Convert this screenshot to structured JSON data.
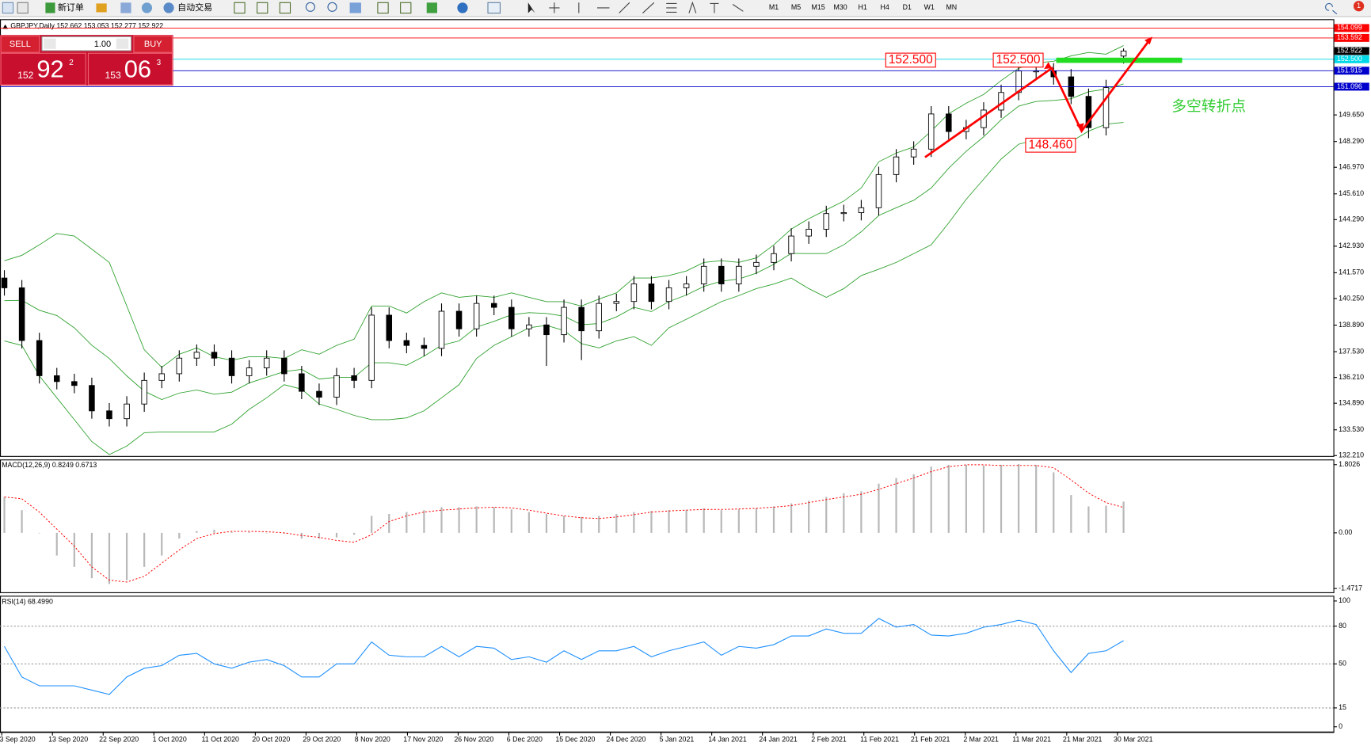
{
  "toolbar": {
    "buttons": [
      "新订单",
      "自动交易"
    ],
    "timeframes": [
      "M1",
      "M5",
      "M15",
      "M30",
      "H1",
      "H4",
      "D1",
      "W1",
      "MN"
    ],
    "alerts": "1"
  },
  "one_click": {
    "sell": "SELL",
    "buy": "BUY",
    "lot": "1.00",
    "bid_big": "152",
    "bid_main": "92",
    "bid_pip": "2",
    "ask_big": "153",
    "ask_main": "06",
    "ask_pip": "3"
  },
  "x_axis": {
    "labels": [
      "3 Sep 2020",
      "13 Sep 2020",
      "22 Sep 2020",
      "1 Oct 2020",
      "11 Oct 2020",
      "20 Oct 2020",
      "29 Oct 2020",
      "8 Nov 2020",
      "17 Nov 2020",
      "26 Nov 2020",
      "6 Dec 2020",
      "15 Dec 2020",
      "24 Dec 2020",
      "5 Jan 2021",
      "14 Jan 2021",
      "24 Jan 2021",
      "2 Feb 2021",
      "11 Feb 2021",
      "21 Feb 2021",
      "2 Mar 2021",
      "11 Mar 2021",
      "21 Mar 2021",
      "30 Mar 2021"
    ]
  },
  "chart_data": [
    {
      "type": "candlestick",
      "title": "GBPJPY,Daily  152.662 153.053 152.277 152.922",
      "up_color": "#ffffff",
      "down_color": "#000000",
      "open": [
        141.3,
        140.8,
        138.1,
        136.3,
        136.0,
        135.8,
        134.5,
        134.1,
        134.85,
        136.06,
        136.4,
        137.2,
        137.5,
        137.2,
        136.3,
        136.7,
        137.2,
        136.4,
        135.5,
        135.2,
        136.3,
        136.06,
        139.4,
        138.1,
        137.85,
        137.7,
        139.6,
        138.7,
        140.0,
        139.8,
        138.7,
        138.9,
        138.4,
        139.8,
        138.6,
        140.0,
        140.1,
        141.0,
        140.1,
        140.8,
        141.0,
        141.9,
        141.0,
        141.9,
        142.1,
        142.55,
        143.45,
        143.8,
        144.6,
        144.65,
        144.9,
        146.6,
        147.5,
        147.9,
        149.7,
        148.8,
        149.0,
        149.9,
        150.8,
        151.9,
        151.9,
        151.6,
        150.6,
        149.0,
        152.662
      ],
      "high": [
        141.7,
        141.2,
        138.5,
        136.7,
        136.4,
        136.2,
        134.9,
        135.25,
        136.46,
        136.8,
        137.6,
        137.9,
        137.9,
        137.6,
        137.1,
        137.6,
        137.6,
        136.8,
        135.9,
        136.7,
        136.7,
        139.8,
        139.8,
        138.5,
        138.25,
        140.0,
        140.0,
        140.4,
        140.4,
        140.2,
        139.3,
        139.3,
        140.2,
        140.2,
        140.4,
        140.5,
        141.4,
        141.4,
        141.2,
        141.4,
        142.3,
        142.3,
        142.3,
        142.5,
        142.95,
        143.85,
        144.2,
        145.0,
        145.05,
        145.3,
        147.0,
        147.9,
        148.3,
        150.1,
        150.1,
        149.4,
        150.3,
        151.2,
        152.3,
        152.3,
        152.3,
        152.0,
        151.0,
        151.45,
        153.053
      ],
      "low": [
        140.4,
        137.7,
        135.9,
        135.6,
        135.4,
        134.1,
        133.7,
        133.7,
        134.45,
        135.66,
        136.0,
        136.8,
        136.8,
        135.9,
        135.9,
        136.3,
        136.0,
        135.1,
        134.8,
        134.8,
        135.66,
        135.66,
        137.7,
        137.45,
        137.3,
        137.3,
        138.3,
        138.3,
        139.4,
        138.3,
        138.3,
        136.8,
        138.0,
        137.1,
        138.2,
        139.6,
        139.7,
        139.7,
        139.7,
        140.4,
        140.6,
        140.6,
        140.6,
        141.5,
        141.7,
        142.15,
        143.05,
        143.4,
        144.2,
        144.25,
        144.5,
        146.2,
        147.1,
        147.5,
        148.4,
        148.4,
        148.6,
        149.5,
        150.4,
        151.5,
        151.2,
        150.2,
        148.46,
        148.6,
        152.277
      ],
      "close": [
        140.8,
        138.1,
        136.3,
        136.0,
        135.8,
        134.5,
        134.1,
        134.85,
        136.06,
        136.4,
        137.2,
        137.5,
        137.2,
        136.3,
        136.7,
        137.2,
        136.4,
        135.5,
        135.2,
        136.3,
        136.06,
        139.4,
        138.1,
        137.85,
        137.7,
        139.6,
        138.7,
        140.0,
        139.8,
        138.7,
        138.9,
        138.4,
        139.8,
        138.6,
        140.0,
        140.1,
        141.0,
        140.1,
        140.8,
        141.0,
        141.9,
        141.0,
        141.9,
        142.1,
        142.55,
        143.45,
        143.8,
        144.6,
        144.65,
        144.9,
        146.6,
        147.5,
        147.9,
        149.7,
        148.8,
        149.0,
        149.9,
        150.8,
        151.9,
        151.9,
        151.6,
        150.6,
        149.0,
        151.05,
        152.922
      ],
      "bands": {
        "color": "#2ca02c",
        "upper": [
          142.19,
          142.46,
          143.0,
          143.58,
          143.45,
          142.78,
          142.1,
          139.87,
          137.63,
          136.73,
          137.4,
          137.72,
          137.27,
          137.09,
          137.27,
          137.27,
          137.18,
          137.63,
          137.4,
          137.85,
          138.17,
          139.87,
          139.87,
          139.51,
          140.09,
          140.54,
          140.31,
          140.4,
          140.31,
          140.54,
          140.31,
          140.09,
          140.09,
          139.87,
          140.22,
          140.54,
          141.3,
          141.3,
          141.43,
          141.66,
          142.1,
          142.19,
          142.1,
          142.33,
          143.0,
          143.81,
          144.34,
          144.79,
          145.24,
          145.91,
          147.25,
          147.7,
          148.01,
          148.82,
          149.71,
          150.25,
          150.7,
          151.41,
          152.04,
          152.31,
          152.4,
          152.67,
          152.85,
          152.76,
          153.2
        ],
        "middle": [
          140.14,
          140.16,
          139.65,
          139.38,
          138.75,
          137.86,
          137.18,
          136.29,
          135.51,
          135.08,
          135.41,
          135.57,
          135.35,
          135.46,
          135.93,
          136.22,
          136.51,
          136.62,
          136.13,
          136.22,
          136.22,
          136.96,
          136.96,
          136.83,
          137.3,
          137.86,
          138.08,
          138.79,
          139.08,
          139.42,
          139.53,
          139.49,
          139.35,
          138.91,
          138.97,
          139.31,
          139.8,
          139.58,
          140.09,
          140.43,
          140.87,
          141.14,
          141.25,
          141.55,
          142.0,
          142.56,
          142.55,
          142.55,
          143.0,
          143.67,
          144.5,
          144.9,
          145.28,
          145.91,
          146.92,
          147.79,
          148.53,
          149.4,
          150.1,
          150.34,
          150.39,
          150.48,
          150.84,
          150.97,
          151.24
        ],
        "lower": [
          138.08,
          137.85,
          136.29,
          135.17,
          134.05,
          132.93,
          132.26,
          132.7,
          133.38,
          133.42,
          133.42,
          133.42,
          133.42,
          133.82,
          134.58,
          135.17,
          135.84,
          135.61,
          134.85,
          134.58,
          134.27,
          134.05,
          134.05,
          134.14,
          134.5,
          135.17,
          135.84,
          137.18,
          137.85,
          138.3,
          138.75,
          138.88,
          138.61,
          137.94,
          137.72,
          138.08,
          138.3,
          137.85,
          138.75,
          139.19,
          139.64,
          140.09,
          140.4,
          140.76,
          140.99,
          141.3,
          140.76,
          140.31,
          140.76,
          141.43,
          141.75,
          142.1,
          142.55,
          143.0,
          144.12,
          145.33,
          146.36,
          147.39,
          148.15,
          148.37,
          148.37,
          148.28,
          148.82,
          149.18,
          149.27
        ]
      },
      "ylim": [
        132.19,
        154.55
      ],
      "yticks": [
        {
          "value": 149.65,
          "label": "149.650"
        },
        {
          "value": 148.29,
          "label": "148.290"
        },
        {
          "value": 146.97,
          "label": "146.970"
        },
        {
          "value": 145.61,
          "label": "145.610"
        },
        {
          "value": 144.29,
          "label": "144.290"
        },
        {
          "value": 142.93,
          "label": "142.930"
        },
        {
          "value": 141.57,
          "label": "141.570"
        },
        {
          "value": 140.25,
          "label": "140.250"
        },
        {
          "value": 138.89,
          "label": "138.890"
        },
        {
          "value": 137.53,
          "label": "137.530"
        },
        {
          "value": 136.21,
          "label": "136.210"
        },
        {
          "value": 134.89,
          "label": "134.890"
        },
        {
          "value": 133.53,
          "label": "133.530"
        },
        {
          "value": 132.21,
          "label": "132.210"
        }
      ],
      "levels": [
        {
          "value": 154.099,
          "color": "#ff0000",
          "line": true
        },
        {
          "value": 153.592,
          "color": "#ff0000",
          "line": true
        },
        {
          "value": 152.922,
          "color": "#000000",
          "line": false
        },
        {
          "value": 152.5,
          "label": "152.500",
          "color": "#00d8e8",
          "line": true
        },
        {
          "value": 151.915,
          "color": "#0000cc",
          "line": true
        },
        {
          "value": 151.096,
          "color": "#0000cc",
          "line": true
        }
      ],
      "annotations": [
        {
          "value": 152.5,
          "label": "152.500"
        },
        {
          "value": 152.5,
          "label": "152.500"
        },
        {
          "value": 148.46,
          "label": "148.460"
        }
      ],
      "note": "多空转折点"
    },
    {
      "type": "macd",
      "title": "MACD(12,26,9) 0.8249 0.6713",
      "bar_color": "#b8b8b8",
      "signal_color": "#ff0000",
      "values": [
        0.95,
        0.6,
        0.0,
        -0.6,
        -0.9,
        -1.2,
        -1.35,
        -1.25,
        -0.9,
        -0.6,
        -0.15,
        0.05,
        0.08,
        0.02,
        0.02,
        0.0,
        -0.02,
        -0.15,
        -0.15,
        -0.12,
        -0.05,
        0.45,
        0.5,
        0.55,
        0.6,
        0.68,
        0.68,
        0.7,
        0.68,
        0.62,
        0.55,
        0.5,
        0.45,
        0.42,
        0.45,
        0.5,
        0.55,
        0.58,
        0.6,
        0.6,
        0.65,
        0.6,
        0.62,
        0.65,
        0.7,
        0.78,
        0.85,
        0.95,
        1.05,
        1.1,
        1.3,
        1.45,
        1.55,
        1.75,
        1.8,
        1.8,
        1.78,
        1.8,
        1.82,
        1.8,
        1.6,
        1.0,
        0.7,
        0.72,
        0.8249
      ],
      "signal": [
        0.95,
        0.9,
        0.55,
        0.1,
        -0.35,
        -0.9,
        -1.25,
        -1.3,
        -1.15,
        -0.8,
        -0.45,
        -0.15,
        -0.02,
        0.04,
        0.04,
        0.03,
        0.0,
        -0.07,
        -0.12,
        -0.2,
        -0.25,
        -0.05,
        0.3,
        0.45,
        0.55,
        0.6,
        0.63,
        0.66,
        0.68,
        0.66,
        0.6,
        0.52,
        0.45,
        0.4,
        0.38,
        0.42,
        0.48,
        0.55,
        0.58,
        0.6,
        0.62,
        0.62,
        0.63,
        0.65,
        0.68,
        0.72,
        0.8,
        0.88,
        0.95,
        1.02,
        1.15,
        1.3,
        1.45,
        1.62,
        1.75,
        1.8,
        1.8,
        1.78,
        1.78,
        1.78,
        1.72,
        1.4,
        1.05,
        0.8,
        0.6713
      ],
      "ylim": [
        -1.57,
        1.94
      ],
      "yticks": [
        1.8026,
        {
          "value": 0,
          "label": "0.00"
        },
        -1.4717
      ]
    },
    {
      "type": "rsi",
      "title": "RSI(14) 68.4990",
      "color": "#1e90ff",
      "values": [
        63.9,
        39.6,
        32.6,
        32.6,
        32.6,
        29.2,
        25.7,
        39.6,
        46.5,
        48.6,
        56.9,
        58.3,
        50,
        46.5,
        51.4,
        53.5,
        48.6,
        39.6,
        39.6,
        50,
        50,
        67.4,
        56.9,
        55.6,
        55.6,
        63.9,
        55.6,
        63.9,
        62.5,
        53.5,
        55.6,
        51.4,
        60.4,
        53.5,
        60.4,
        60.4,
        63.9,
        55.6,
        60.4,
        63.9,
        67.4,
        56.9,
        63.9,
        62.5,
        65.3,
        72.2,
        72.2,
        77.8,
        74.3,
        74.3,
        86.1,
        79.2,
        81.3,
        72.9,
        72.2,
        74.3,
        79.2,
        81.3,
        84.7,
        81.3,
        60.4,
        43.1,
        58.3,
        60.4,
        68.499
      ],
      "ylim": [
        0,
        100
      ],
      "yticks": [
        100,
        80,
        50,
        15,
        0
      ],
      "grid": [
        80,
        50,
        15
      ]
    }
  ]
}
